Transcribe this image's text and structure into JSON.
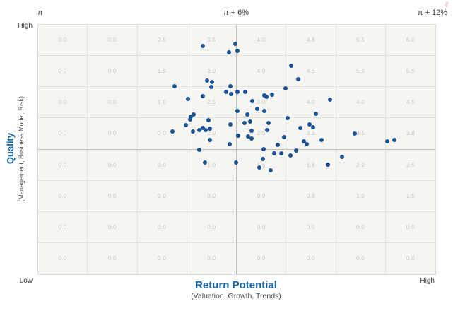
{
  "colors": {
    "dot": "#1a5296",
    "title_blue": "#1565a8",
    "cell_text": "#c8c6c3",
    "grid_line": "#e3e1de",
    "grid_line_mid": "#bfbdba",
    "plot_background": "#f6f5f2"
  },
  "chart_data": {
    "type": "scatter",
    "top_reference_labels": {
      "left": "π",
      "center": "π + 6%",
      "right": "π + 12%"
    },
    "xlabel": "Return Potential",
    "xlabel_note": "(Valuation, Growth, Trends)",
    "ylabel": "Quality",
    "ylabel_note": "(Management, Business Model, Risk)",
    "axis_end_labels": {
      "y_high": "High",
      "corner_low": "Low",
      "x_high": "High"
    },
    "grid": {
      "rows": 8,
      "cols": 8,
      "cell_values": [
        [
          0.0,
          0.0,
          2.5,
          3.5,
          4.0,
          4.8,
          5.5,
          6.0
        ],
        [
          0.0,
          0.0,
          1.5,
          3.0,
          4.0,
          4.5,
          5.0,
          5.5
        ],
        [
          0.0,
          0.0,
          1.0,
          2.5,
          3.0,
          4.0,
          4.0,
          4.5
        ],
        [
          0.0,
          0.0,
          0.0,
          2.0,
          2.5,
          3.2,
          3.5,
          3.8
        ],
        [
          0.0,
          0.0,
          0.0,
          1.0,
          1.5,
          1.8,
          2.2,
          2.5
        ],
        [
          0.0,
          0.0,
          0.0,
          0.0,
          0.0,
          0.8,
          1.0,
          1.5
        ],
        [
          0.0,
          0.0,
          0.0,
          0.0,
          0.0,
          0.0,
          0.0,
          0.0
        ],
        [
          0.0,
          0.0,
          0.0,
          0.0,
          0.0,
          0.0,
          0.0,
          0.0
        ]
      ]
    },
    "points_pct": [
      [
        41.5,
        8.5
      ],
      [
        49.6,
        7.6
      ],
      [
        48.0,
        11.0
      ],
      [
        50.2,
        10.5
      ],
      [
        34.3,
        24.6
      ],
      [
        42.5,
        22.4
      ],
      [
        43.8,
        22.9
      ],
      [
        43.6,
        24.9
      ],
      [
        37.7,
        29.7
      ],
      [
        41.5,
        28.6
      ],
      [
        47.3,
        26.9
      ],
      [
        48.4,
        24.6
      ],
      [
        48.6,
        27.8
      ],
      [
        50.2,
        26.9
      ],
      [
        52.1,
        26.9
      ],
      [
        53.9,
        30.6
      ],
      [
        63.7,
        16.4
      ],
      [
        65.5,
        21.8
      ],
      [
        62.3,
        25.5
      ],
      [
        56.9,
        28.3
      ],
      [
        57.5,
        28.9
      ],
      [
        58.9,
        28.0
      ],
      [
        73.5,
        30.0
      ],
      [
        39.1,
        36.0
      ],
      [
        38.4,
        36.8
      ],
      [
        38.3,
        38.0
      ],
      [
        37.2,
        40.2
      ],
      [
        33.8,
        42.8
      ],
      [
        39.0,
        42.8
      ],
      [
        40.6,
        42.2
      ],
      [
        41.5,
        41.4
      ],
      [
        42.9,
        38.2
      ],
      [
        42.2,
        42.2
      ],
      [
        43.2,
        41.6
      ],
      [
        43.2,
        46.2
      ],
      [
        40.6,
        50.1
      ],
      [
        42.0,
        55.2
      ],
      [
        48.4,
        39.9
      ],
      [
        50.2,
        34.6
      ],
      [
        50.4,
        44.5
      ],
      [
        48.2,
        47.9
      ],
      [
        49.8,
        55.2
      ],
      [
        52.7,
        36.0
      ],
      [
        52.0,
        39.4
      ],
      [
        53.4,
        38.8
      ],
      [
        53.7,
        42.5
      ],
      [
        52.9,
        44.8
      ],
      [
        53.7,
        45.6
      ],
      [
        55.2,
        33.7
      ],
      [
        56.9,
        34.6
      ],
      [
        58.0,
        39.4
      ],
      [
        57.7,
        42.2
      ],
      [
        62.8,
        37.4
      ],
      [
        61.9,
        45.0
      ],
      [
        60.3,
        48.2
      ],
      [
        56.8,
        49.9
      ],
      [
        59.4,
        51.6
      ],
      [
        61.2,
        51.6
      ],
      [
        56.6,
        53.8
      ],
      [
        58.5,
        58.4
      ],
      [
        55.7,
        57.2
      ],
      [
        63.5,
        52.4
      ],
      [
        64.9,
        50.4
      ],
      [
        66.0,
        41.4
      ],
      [
        68.3,
        39.9
      ],
      [
        69.2,
        41.1
      ],
      [
        69.9,
        35.7
      ],
      [
        66.9,
        46.7
      ],
      [
        67.6,
        47.9
      ],
      [
        71.4,
        46.2
      ],
      [
        72.9,
        56.1
      ],
      [
        76.5,
        53.0
      ],
      [
        79.7,
        43.6
      ],
      [
        87.9,
        46.7
      ],
      [
        89.7,
        46.2
      ]
    ]
  }
}
